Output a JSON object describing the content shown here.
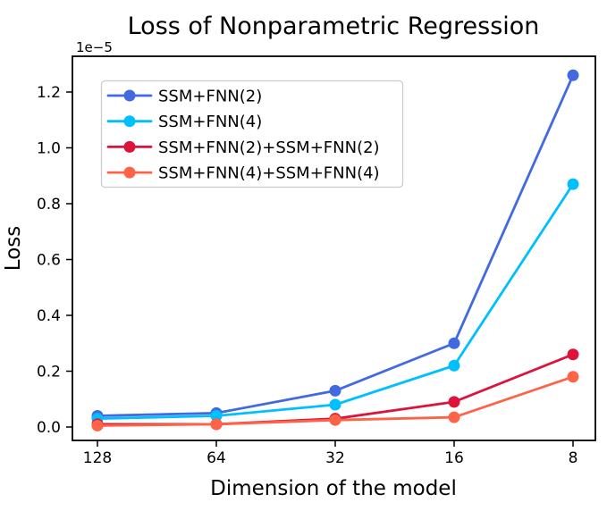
{
  "chart_data": {
    "type": "line",
    "title": "Loss of Nonparametric Regression",
    "xlabel": "Dimension of the model",
    "ylabel": "Loss",
    "y_offset_text": "1e−5",
    "y_scale": "1e-5",
    "grid": false,
    "legend_position": "upper left",
    "categories": [
      128,
      64,
      32,
      16,
      8
    ],
    "x_tick_labels": [
      "128",
      "64",
      "32",
      "16",
      "8"
    ],
    "y_ticks": [
      0.0,
      0.2,
      0.4,
      0.6,
      0.8,
      1.0,
      1.2
    ],
    "ylim": [
      -0.05,
      1.33
    ],
    "series": [
      {
        "name": "SSM+FNN(2)",
        "color": "#4169E1",
        "marker": "circle",
        "values": [
          0.04,
          0.05,
          0.13,
          0.3,
          1.26
        ]
      },
      {
        "name": "SSM+FNN(4)",
        "color": "#00BFFF",
        "marker": "circle",
        "values": [
          0.03,
          0.04,
          0.08,
          0.22,
          0.87
        ]
      },
      {
        "name": "SSM+FNN(2)+SSM+FNN(2)",
        "color": "#DC143C",
        "marker": "circle",
        "values": [
          0.01,
          0.01,
          0.03,
          0.09,
          0.26
        ]
      },
      {
        "name": "SSM+FNN(4)+SSM+FNN(4)",
        "color": "#FF6347",
        "marker": "circle",
        "values": [
          0.005,
          0.01,
          0.025,
          0.035,
          0.18
        ]
      }
    ],
    "colors": {
      "spine": "#000000",
      "legend_border": "#cccccc",
      "background": "#ffffff"
    }
  }
}
